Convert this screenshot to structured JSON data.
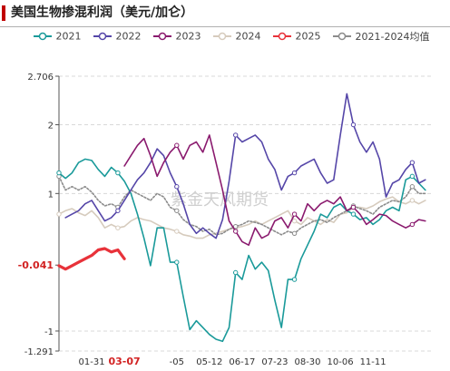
{
  "title": "美国生物掺混利润（美元/加仑）",
  "watermark": "紫金天风期货",
  "colors": {
    "2021": "#1a9a9a",
    "2022": "#5546a8",
    "2023": "#8a1a6e",
    "2024": "#d6cbbd",
    "2025": "#e8323a",
    "avg": "#8c8c8c"
  },
  "chart_data": {
    "type": "line",
    "title": "美国生物掺混利润（美元/加仑）",
    "xlabel": "",
    "ylabel": "",
    "ylim": [
      -1.291,
      2.706
    ],
    "y_ticks": [
      "2.706",
      "2",
      "1",
      "-0.041",
      "-1",
      "-1.291"
    ],
    "y_tick_values": [
      2.706,
      2,
      1,
      -0.041,
      -1,
      -1.291
    ],
    "x_ticks": [
      "01-31",
      "03-07",
      "-05",
      "05-12",
      "06-17",
      "07-23",
      "08-30",
      "10-06",
      "11-11"
    ],
    "x_tick_positions": [
      5,
      10,
      18,
      23,
      28,
      33,
      38,
      43,
      48
    ],
    "x_range": [
      0,
      57
    ],
    "highlight_y_tick": "-0.041",
    "highlight_x_tick": "03-07",
    "legend_position": "top",
    "grid": "horizontal-dashed",
    "series": [
      {
        "name": "2021",
        "color": "#1a9a9a",
        "values": [
          1.3,
          1.22,
          1.3,
          1.45,
          1.5,
          1.48,
          1.35,
          1.25,
          1.38,
          1.3,
          1.18,
          1.0,
          0.7,
          0.35,
          -0.05,
          0.5,
          0.5,
          0.0,
          0.0,
          -0.5,
          -0.98,
          -0.85,
          -0.95,
          -1.05,
          -1.12,
          -1.15,
          -0.95,
          -0.15,
          -0.25,
          0.1,
          -0.1,
          0.0,
          -0.12,
          -0.55,
          -0.95,
          -0.25,
          -0.25,
          0.05,
          0.25,
          0.45,
          0.7,
          0.65,
          0.8,
          0.85,
          0.75,
          0.7,
          0.62,
          0.65,
          0.55,
          0.62,
          0.75,
          0.8,
          0.75,
          1.2,
          1.25,
          1.15,
          1.05
        ]
      },
      {
        "name": "2022",
        "color": "#5546a8",
        "values": [
          null,
          0.65,
          0.7,
          0.75,
          0.85,
          0.9,
          0.75,
          0.6,
          0.65,
          0.75,
          0.9,
          1.05,
          1.2,
          1.3,
          1.45,
          1.65,
          1.55,
          1.3,
          1.1,
          0.85,
          0.55,
          0.42,
          0.5,
          0.42,
          0.35,
          0.62,
          1.18,
          1.85,
          1.75,
          1.8,
          1.85,
          1.75,
          1.5,
          1.35,
          1.05,
          1.25,
          1.3,
          1.4,
          1.45,
          1.5,
          1.3,
          1.15,
          1.2,
          1.85,
          2.45,
          2.0,
          1.75,
          1.6,
          1.75,
          1.5,
          0.95,
          1.15,
          1.2,
          1.35,
          1.45,
          1.15,
          1.2
        ]
      },
      {
        "name": "2023",
        "color": "#8a1a6e",
        "values": [
          null,
          null,
          null,
          null,
          null,
          null,
          null,
          null,
          null,
          null,
          1.4,
          1.55,
          1.7,
          1.8,
          1.55,
          1.25,
          1.45,
          1.6,
          1.7,
          1.5,
          1.7,
          1.75,
          1.6,
          1.85,
          1.45,
          1.05,
          0.6,
          0.45,
          0.3,
          0.25,
          0.5,
          0.35,
          0.4,
          0.6,
          0.65,
          0.5,
          0.7,
          0.6,
          0.85,
          0.75,
          0.85,
          0.9,
          0.85,
          0.95,
          0.75,
          0.8,
          0.7,
          0.55,
          0.62,
          0.7,
          0.68,
          0.6,
          0.55,
          0.5,
          0.55,
          0.62,
          0.6
        ]
      },
      {
        "name": "2024",
        "color": "#d6cbbd",
        "values": [
          0.7,
          0.75,
          0.78,
          0.72,
          0.68,
          0.75,
          0.65,
          0.5,
          0.55,
          0.5,
          0.52,
          0.6,
          0.65,
          0.62,
          0.6,
          0.55,
          0.5,
          0.48,
          0.45,
          0.4,
          0.38,
          0.35,
          0.35,
          0.4,
          0.42,
          0.45,
          0.48,
          0.5,
          0.52,
          0.55,
          0.6,
          0.55,
          0.6,
          0.65,
          0.7,
          0.75,
          0.6,
          0.55,
          0.65,
          0.6,
          0.55,
          0.62,
          0.58,
          0.7,
          0.72,
          0.8,
          0.8,
          0.78,
          0.82,
          0.88,
          0.92,
          0.95,
          0.88,
          0.85,
          0.9,
          0.85,
          0.9
        ]
      },
      {
        "name": "2025",
        "color": "#e8323a",
        "values": [
          -0.05,
          -0.1,
          -0.05,
          0.0,
          0.05,
          0.1,
          0.18,
          0.2,
          0.15,
          0.18,
          0.05
        ]
      },
      {
        "name": "2021-2024均值",
        "color": "#8c8c8c",
        "values": [
          1.25,
          1.05,
          1.1,
          1.05,
          1.1,
          1.02,
          0.9,
          0.82,
          0.85,
          0.8,
          0.95,
          1.05,
          1.0,
          0.95,
          0.9,
          1.0,
          0.95,
          0.8,
          0.75,
          0.62,
          0.55,
          0.52,
          0.45,
          0.48,
          0.4,
          0.42,
          0.48,
          0.52,
          0.55,
          0.6,
          0.58,
          0.55,
          0.5,
          0.45,
          0.4,
          0.45,
          0.42,
          0.5,
          0.55,
          0.6,
          0.62,
          0.58,
          0.65,
          0.7,
          0.75,
          0.82,
          0.78,
          0.75,
          0.7,
          0.8,
          0.85,
          0.9,
          0.88,
          0.95,
          1.1,
          1.0,
          1.0
        ]
      }
    ]
  }
}
